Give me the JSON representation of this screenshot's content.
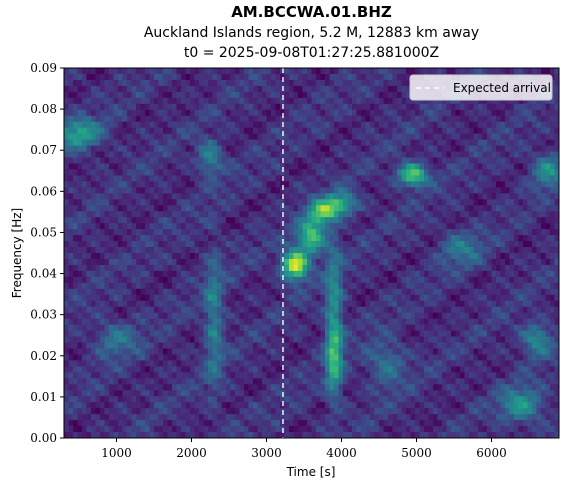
{
  "chart_data": {
    "type": "heatmap",
    "title": "AM.BCCWA.01.BHZ",
    "subtitle": "Auckland Islands region, 5.2 M, 12883 km away",
    "subtitle2": "t0 = 2025-09-08T01:27:25.881000Z",
    "xlabel": "Time [s]",
    "ylabel": "Frequency [Hz]",
    "xlim": [
      300,
      6900
    ],
    "ylim": [
      0.0,
      0.09
    ],
    "xticks": [
      1000,
      2000,
      3000,
      4000,
      5000,
      6000
    ],
    "yticks": [
      "0.00",
      "0.01",
      "0.02",
      "0.03",
      "0.04",
      "0.05",
      "0.06",
      "0.07",
      "0.08",
      "0.09"
    ],
    "colormap": "viridis",
    "expected_arrival_s": 3220,
    "legend": {
      "position": "top-right",
      "entries": [
        "Expected arrival"
      ]
    },
    "energy_blobs": [
      {
        "t": 3380,
        "f": 0.042,
        "amp": 1.0,
        "st": 120,
        "sf": 0.0025
      },
      {
        "t": 3600,
        "f": 0.049,
        "amp": 0.7,
        "st": 130,
        "sf": 0.003
      },
      {
        "t": 3750,
        "f": 0.055,
        "amp": 0.65,
        "st": 130,
        "sf": 0.002
      },
      {
        "t": 4000,
        "f": 0.057,
        "amp": 0.55,
        "st": 150,
        "sf": 0.002
      },
      {
        "t": 4950,
        "f": 0.064,
        "amp": 0.75,
        "st": 140,
        "sf": 0.002
      },
      {
        "t": 3900,
        "f": 0.03,
        "amp": 0.45,
        "st": 80,
        "sf": 0.012
      },
      {
        "t": 3900,
        "f": 0.018,
        "amp": 0.35,
        "st": 80,
        "sf": 0.006
      },
      {
        "t": 2300,
        "f": 0.028,
        "amp": 0.35,
        "st": 90,
        "sf": 0.012
      },
      {
        "t": 2250,
        "f": 0.068,
        "amp": 0.4,
        "st": 120,
        "sf": 0.003
      },
      {
        "t": 500,
        "f": 0.074,
        "amp": 0.5,
        "st": 220,
        "sf": 0.0025
      },
      {
        "t": 6600,
        "f": 0.024,
        "amp": 0.4,
        "st": 150,
        "sf": 0.003
      },
      {
        "t": 6400,
        "f": 0.008,
        "amp": 0.45,
        "st": 200,
        "sf": 0.003
      },
      {
        "t": 6750,
        "f": 0.065,
        "amp": 0.4,
        "st": 150,
        "sf": 0.003
      },
      {
        "t": 1000,
        "f": 0.024,
        "amp": 0.3,
        "st": 200,
        "sf": 0.003
      },
      {
        "t": 4600,
        "f": 0.018,
        "amp": 0.3,
        "st": 180,
        "sf": 0.004
      },
      {
        "t": 5600,
        "f": 0.046,
        "amp": 0.3,
        "st": 200,
        "sf": 0.003
      }
    ]
  }
}
